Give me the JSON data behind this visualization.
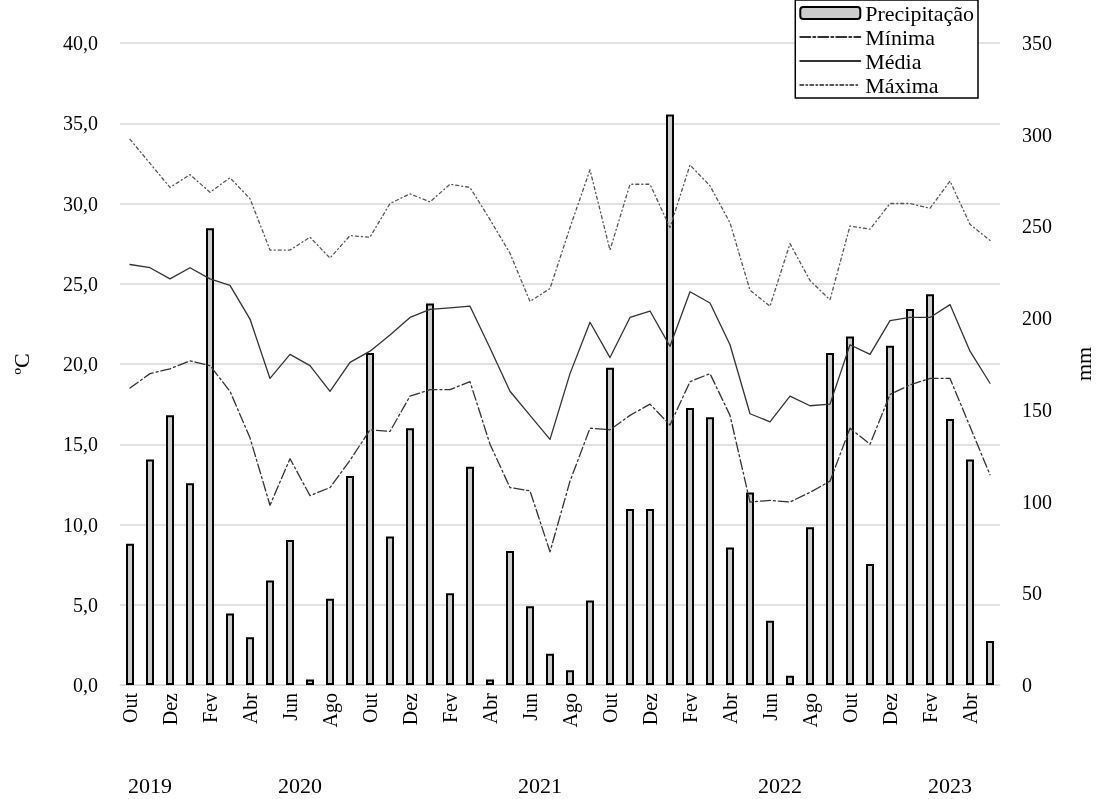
{
  "chart_data": {
    "type": "line",
    "ylabel": "ºC",
    "y2label": "mm",
    "categories": [
      "Out",
      null,
      "Dez",
      null,
      "Fev",
      null,
      "Abr",
      null,
      "Jun",
      null,
      "Ago",
      null,
      "Out",
      null,
      "Dez",
      null,
      "Fev",
      null,
      "Abr",
      null,
      "Jun",
      null,
      "Ago",
      null,
      "Out",
      null,
      "Dez",
      null,
      "Fev",
      null,
      "Abr",
      null,
      "Jun",
      null,
      "Ago",
      null,
      "Out",
      null,
      "Dez",
      null,
      "Fev",
      null,
      "Abr",
      null
    ],
    "series": [
      {
        "name": "Precipitação",
        "type": "bar",
        "axis": "y2",
        "color": "#cccccc",
        "values": [
          77,
          123,
          147,
          110,
          249,
          39,
          26,
          57,
          79,
          3,
          47,
          114,
          181,
          81,
          140,
          208,
          50,
          119,
          3,
          73,
          43,
          17,
          8,
          46,
          173,
          96,
          96,
          311,
          151,
          146,
          75,
          105,
          35,
          5,
          86,
          181,
          190,
          66,
          185,
          205,
          213,
          145,
          123,
          24
        ]
      },
      {
        "name": "Mínima",
        "line_style": "dashed",
        "color": "#333333",
        "values": [
          18.5,
          19.4,
          19.7,
          20.2,
          19.9,
          18.3,
          15.4,
          11.2,
          14.1,
          11.8,
          12.3,
          14.0,
          15.9,
          15.8,
          18.0,
          18.4,
          18.4,
          18.9,
          15.0,
          12.3,
          12.1,
          8.3,
          12.7,
          16.0,
          15.9,
          16.8,
          17.5,
          16.2,
          18.9,
          19.4,
          16.8,
          11.4,
          11.5,
          11.4,
          12.0,
          12.7,
          16.0,
          15.0,
          18.1,
          18.7,
          19.1,
          19.1,
          16.1,
          13.1
        ]
      },
      {
        "name": "Média",
        "line_style": "solid",
        "color": "#333333",
        "values": [
          26.2,
          26.0,
          25.3,
          26.0,
          25.3,
          24.9,
          22.8,
          19.1,
          20.6,
          19.9,
          18.3,
          20.1,
          20.8,
          21.8,
          22.9,
          23.4,
          23.5,
          23.6,
          21.0,
          18.3,
          16.8,
          15.3,
          19.4,
          22.6,
          20.4,
          22.9,
          23.3,
          21.1,
          24.5,
          23.8,
          21.2,
          16.9,
          16.4,
          18.0,
          17.4,
          17.5,
          21.2,
          20.6,
          22.7,
          22.9,
          22.9,
          23.7,
          20.8,
          18.8
        ]
      },
      {
        "name": "Máxima",
        "line_style": "dotted",
        "color": "#555555",
        "values": [
          34.0,
          32.5,
          31.0,
          31.8,
          30.7,
          31.6,
          30.3,
          27.1,
          27.1,
          27.9,
          26.6,
          28.0,
          27.9,
          30.0,
          30.6,
          30.1,
          31.2,
          31.0,
          29.0,
          26.9,
          23.9,
          24.7,
          28.5,
          32.1,
          27.1,
          31.2,
          31.2,
          28.5,
          32.4,
          31.1,
          28.8,
          24.6,
          23.6,
          27.5,
          25.2,
          24.0,
          28.6,
          28.4,
          30.0,
          30.0,
          29.7,
          31.4,
          28.7,
          27.7
        ]
      }
    ],
    "ylim": [
      0,
      40
    ],
    "yticks": [
      {
        "value": 0,
        "label": "0,0"
      },
      {
        "value": 5,
        "label": "5,0"
      },
      {
        "value": 10,
        "label": "10,0"
      },
      {
        "value": 15,
        "label": "15,0"
      },
      {
        "value": 20,
        "label": "20,0"
      },
      {
        "value": 25,
        "label": "25,0"
      },
      {
        "value": 30,
        "label": "30,0"
      },
      {
        "value": 35,
        "label": "35,0"
      },
      {
        "value": 40,
        "label": "40,0"
      }
    ],
    "y2lim": [
      0,
      350
    ],
    "y2ticks": [
      0,
      50,
      100,
      150,
      200,
      250,
      300,
      350
    ],
    "grid": "y",
    "legend": "top right",
    "annotations": [
      "2019",
      "2020",
      "2021",
      "2022",
      "2023"
    ]
  }
}
